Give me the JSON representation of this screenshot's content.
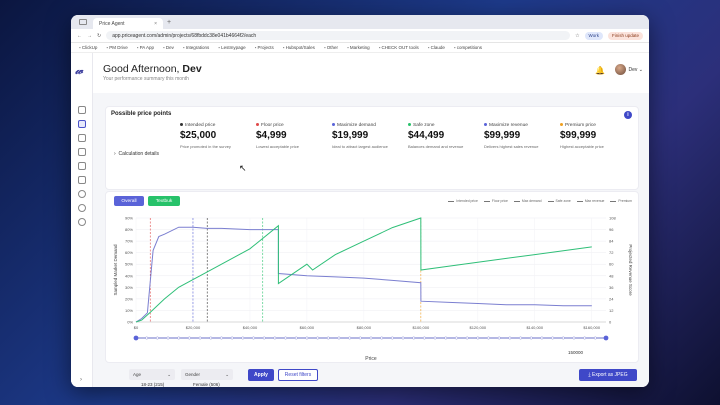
{
  "browser": {
    "tab_title": "Price Agent",
    "url": "app.priceagent.com/admin/projects/68fbddc38e041b4664f2/each",
    "profile_work": "Work",
    "update_label": "Finish update",
    "bookmarks": [
      "ClickUp",
      "PM Drive",
      "PA App",
      "Dev",
      "Integrations",
      "Lestmypage",
      "Projects",
      "Hubspot/Sales",
      "Other",
      "Marketing",
      "CHECK OUT tools",
      "Claude",
      "competitions"
    ]
  },
  "header": {
    "greeting": "Good Afternoon,",
    "user_bold": "Dev",
    "subtitle": "Your performance summary this month",
    "user_menu": "Dev"
  },
  "price_points": {
    "title": "Possible price points",
    "info_icon": "i",
    "calc_label": "Calculation details",
    "items": [
      {
        "label": "Intended price",
        "value": "$25,000",
        "desc": "Price promoted in the survey",
        "color": "#333333"
      },
      {
        "label": "Floor price",
        "value": "$4,999",
        "desc": "Lowest acceptable price",
        "color": "#e04848"
      },
      {
        "label": "Maximize demand",
        "value": "$19,999",
        "desc": "Ideal to attract largest audience",
        "color": "#5a63d8"
      },
      {
        "label": "Safe zone",
        "value": "$44,499",
        "desc": "Balances demand and revenue",
        "color": "#27c26a"
      },
      {
        "label": "Maximize revenue",
        "value": "$99,999",
        "desc": "Delivers highest sales revenue",
        "color": "#5a63d8"
      },
      {
        "label": "Premium price",
        "value": "$99,999",
        "desc": "Highest acceptable price",
        "color": "#f0a020"
      }
    ]
  },
  "chart_controls": {
    "overall": "Overall",
    "textbuk": "Textbuk",
    "legend": [
      "Intended price",
      "Floor price",
      "Max demand",
      "Safe zone",
      "Max revenue",
      "Premium"
    ],
    "slider_value": "150000"
  },
  "chart_data": {
    "type": "line",
    "xlabel": "Price",
    "ylabel": "Sampled Market Demand",
    "y2label": "Projected Revenue Score",
    "x_ticks": [
      "$0",
      "$20,000",
      "$40,000",
      "$60,000",
      "$80,000",
      "$100,000",
      "$120,000",
      "$140,000",
      "$160,000"
    ],
    "x_tick_values": [
      0,
      20000,
      40000,
      60000,
      80000,
      100000,
      120000,
      140000,
      160000
    ],
    "y_ticks": [
      "0%",
      "10%",
      "20%",
      "30%",
      "40%",
      "50%",
      "60%",
      "70%",
      "80%",
      "90%"
    ],
    "y_tick_values": [
      0,
      10,
      20,
      30,
      40,
      50,
      60,
      70,
      80,
      90
    ],
    "y2_ticks": [
      "0",
      "12",
      "24",
      "36",
      "48",
      "60",
      "72",
      "84",
      "96",
      "108"
    ],
    "y2_tick_values": [
      0,
      12,
      24,
      36,
      48,
      60,
      72,
      84,
      96,
      108
    ],
    "xlim": [
      0,
      165000
    ],
    "ylim": [
      0,
      90
    ],
    "y2lim": [
      0,
      108
    ],
    "series": [
      {
        "color": "#7b7fd0",
        "axis": "left",
        "x": [
          0,
          2000,
          4000,
          6000,
          8000,
          10000,
          15000,
          20000,
          25000,
          30000,
          40000,
          50000,
          50001,
          60000,
          70000,
          80000,
          90000,
          100000,
          100001,
          110000,
          120000,
          130000,
          140000,
          150000,
          160000
        ],
        "y": [
          0,
          3,
          8,
          62,
          74,
          76,
          82,
          82,
          81,
          81,
          80,
          80,
          42,
          40,
          39,
          38,
          36,
          34,
          18,
          17,
          16,
          15,
          15,
          14,
          14
        ]
      },
      {
        "color": "#2fbf78",
        "axis": "right",
        "x": [
          0,
          2000,
          5000,
          10000,
          15000,
          20000,
          25000,
          30000,
          40000,
          50000,
          50001,
          60000,
          62000,
          70000,
          80000,
          90000,
          100000,
          100001,
          110000,
          120000,
          130000,
          140000,
          150000,
          160000
        ],
        "y": [
          0,
          2,
          10,
          24,
          36,
          44,
          52,
          60,
          76,
          100,
          40,
          60,
          54,
          70,
          84,
          98,
          112,
          54,
          58,
          62,
          66,
          70,
          74,
          78
        ]
      }
    ],
    "vlines": [
      {
        "x": 4999,
        "color": "#e04848"
      },
      {
        "x": 19999,
        "color": "#5a63d8"
      },
      {
        "x": 25000,
        "color": "#333333"
      },
      {
        "x": 44499,
        "color": "#27c26a"
      },
      {
        "x": 99999,
        "color": "#f0a020"
      }
    ]
  },
  "filters": {
    "age_label": "Age",
    "age_note": "18-23 (215)",
    "gender_label": "Gender",
    "gender_note": "Female (506)",
    "apply": "Apply",
    "reset": "Reset filters",
    "export": "Export as JPEG"
  }
}
